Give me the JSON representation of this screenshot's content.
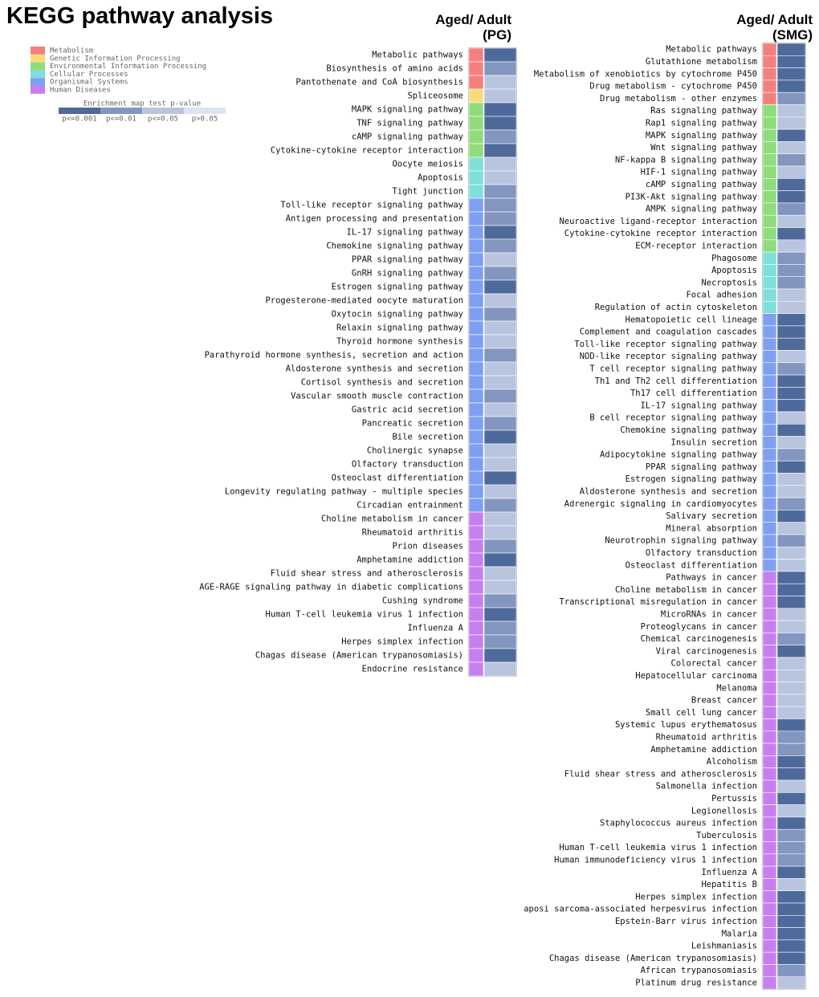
{
  "title": "KEGG pathway analysis",
  "legend": {
    "groups": [
      {
        "name": "Metabolism",
        "color": "#f57f7f"
      },
      {
        "name": "Genetic Information Processing",
        "color": "#fadb7a"
      },
      {
        "name": "Environmental Information Processing",
        "color": "#8fdc7b"
      },
      {
        "name": "Cellular Processes",
        "color": "#7fdfdb"
      },
      {
        "name": "Organismal Systems",
        "color": "#7f9ff2"
      },
      {
        "name": "Human Diseases",
        "color": "#c77ff0"
      }
    ],
    "scale_title": "Enrichment map test p-value",
    "levels": [
      {
        "label": "p<=0.001",
        "color": "#4e6a9a"
      },
      {
        "label": "p<=0.01",
        "color": "#8396bf"
      },
      {
        "label": "p<=0.05",
        "color": "#b9c4df"
      },
      {
        "label": "p>0.05",
        "color": "#dde3f1"
      }
    ]
  },
  "panels": [
    {
      "header": [
        "Aged/ Adult",
        "(PG)"
      ],
      "groups": [
        {
          "name": "Metabolism",
          "rows": [
            [
              "Metabolic pathways",
              "p<=0.001"
            ],
            [
              "Biosynthesis of amino acids",
              "p<=0.01"
            ],
            [
              "Pantothenate and CoA biosynthesis",
              "p<=0.05"
            ]
          ]
        },
        {
          "name": "Genetic Information Processing",
          "rows": [
            [
              "Spliceosome",
              "p<=0.05"
            ]
          ]
        },
        {
          "name": "Environmental Information Processing",
          "rows": [
            [
              "MAPK signaling pathway",
              "p<=0.001"
            ],
            [
              "TNF signaling pathway",
              "p<=0.001"
            ],
            [
              "cAMP signaling pathway",
              "p<=0.01"
            ],
            [
              "Cytokine-cytokine receptor interaction",
              "p<=0.001"
            ]
          ]
        },
        {
          "name": "Cellular Processes",
          "rows": [
            [
              "Oocyte meiosis",
              "p<=0.05"
            ],
            [
              "Apoptosis",
              "p<=0.05"
            ],
            [
              "Tight junction",
              "p<=0.01"
            ]
          ]
        },
        {
          "name": "Organismal Systems",
          "rows": [
            [
              "Toll-like receptor signaling pathway",
              "p<=0.01"
            ],
            [
              "Antigen processing and presentation",
              "p<=0.01"
            ],
            [
              "IL-17 signaling pathway",
              "p<=0.001"
            ],
            [
              "Chemokine signaling pathway",
              "p<=0.01"
            ],
            [
              "PPAR signaling pathway",
              "p<=0.05"
            ],
            [
              "GnRH signaling pathway",
              "p<=0.01"
            ],
            [
              "Estrogen signaling pathway",
              "p<=0.001"
            ],
            [
              "Progesterone-mediated oocyte maturation",
              "p<=0.05"
            ],
            [
              "Oxytocin signaling pathway",
              "p<=0.01"
            ],
            [
              "Relaxin signaling pathway",
              "p<=0.05"
            ],
            [
              "Thyroid hormone synthesis",
              "p<=0.05"
            ],
            [
              "Parathyroid hormone synthesis, secretion and action",
              "p<=0.01"
            ],
            [
              "Aldosterone synthesis and secretion",
              "p<=0.05"
            ],
            [
              "Cortisol synthesis and secretion",
              "p<=0.05"
            ],
            [
              "Vascular smooth muscle contraction",
              "p<=0.01"
            ],
            [
              "Gastric acid secretion",
              "p<=0.05"
            ],
            [
              "Pancreatic secretion",
              "p<=0.01"
            ],
            [
              "Bile secretion",
              "p<=0.001"
            ],
            [
              "Cholinergic synapse",
              "p<=0.05"
            ],
            [
              "Olfactory transduction",
              "p<=0.05"
            ],
            [
              "Osteoclast differentiation",
              "p<=0.001"
            ],
            [
              "Longevity regulating pathway - multiple species",
              "p<=0.05"
            ],
            [
              "Circadian entrainment",
              "p<=0.01"
            ]
          ]
        },
        {
          "name": "Human Diseases",
          "rows": [
            [
              "Choline metabolism in cancer",
              "p<=0.05"
            ],
            [
              "Rheumatoid arthritis",
              "p<=0.05"
            ],
            [
              "Prion diseases",
              "p<=0.01"
            ],
            [
              "Amphetamine addiction",
              "p<=0.001"
            ],
            [
              "Fluid shear stress and atherosclerosis",
              "p<=0.05"
            ],
            [
              "AGE-RAGE signaling pathway in diabetic complications",
              "p<=0.05"
            ],
            [
              "Cushing syndrome",
              "p<=0.01"
            ],
            [
              "Human T-cell leukemia virus 1 infection",
              "p<=0.001"
            ],
            [
              "Influenza A",
              "p<=0.01"
            ],
            [
              "Herpes simplex infection",
              "p<=0.01"
            ],
            [
              "Chagas disease (American trypanosomiasis)",
              "p<=0.001"
            ],
            [
              "Endocrine resistance",
              "p<=0.05"
            ]
          ]
        }
      ]
    },
    {
      "header": [
        "Aged/ Adult",
        "(SMG)"
      ],
      "groups": [
        {
          "name": "Metabolism",
          "rows": [
            [
              "Metabolic pathways",
              "p<=0.001"
            ],
            [
              "Glutathione metabolism",
              "p<=0.001"
            ],
            [
              "Metabolism of xenobiotics by cytochrome P450",
              "p<=0.001"
            ],
            [
              "Drug metabolism - cytochrome P450",
              "p<=0.001"
            ],
            [
              "Drug metabolism - other enzymes",
              "p<=0.01"
            ]
          ]
        },
        {
          "name": "Environmental Information Processing",
          "rows": [
            [
              "Ras signaling pathway",
              "p<=0.05"
            ],
            [
              "Rap1 signaling pathway",
              "p<=0.05"
            ],
            [
              "MAPK signaling pathway",
              "p<=0.001"
            ],
            [
              "Wnt signaling pathway",
              "p<=0.05"
            ],
            [
              "NF-kappa B signaling pathway",
              "p<=0.01"
            ],
            [
              "HIF-1 signaling pathway",
              "p<=0.05"
            ],
            [
              "cAMP signaling pathway",
              "p<=0.001"
            ],
            [
              "PI3K-Akt signaling pathway",
              "p<=0.001"
            ],
            [
              "AMPK signaling pathway",
              "p<=0.01"
            ],
            [
              "Neuroactive ligand-receptor interaction",
              "p<=0.05"
            ],
            [
              "Cytokine-cytokine receptor interaction",
              "p<=0.001"
            ],
            [
              "ECM-receptor interaction",
              "p<=0.05"
            ]
          ]
        },
        {
          "name": "Cellular Processes",
          "rows": [
            [
              "Phagosome",
              "p<=0.01"
            ],
            [
              "Apoptosis",
              "p<=0.01"
            ],
            [
              "Necroptosis",
              "p<=0.01"
            ],
            [
              "Focal adhesion",
              "p<=0.05"
            ],
            [
              "Regulation of actin cytoskeleton",
              "p<=0.05"
            ]
          ]
        },
        {
          "name": "Organismal Systems",
          "rows": [
            [
              "Hematopoietic cell lineage",
              "p<=0.001"
            ],
            [
              "Complement and coagulation cascades",
              "p<=0.001"
            ],
            [
              "Toll-like receptor signaling pathway",
              "p<=0.001"
            ],
            [
              "NOD-like receptor signaling pathway",
              "p<=0.05"
            ],
            [
              "T cell receptor signaling pathway",
              "p<=0.01"
            ],
            [
              "Th1 and Th2 cell differentiation",
              "p<=0.001"
            ],
            [
              "Th17 cell differentiation",
              "p<=0.001"
            ],
            [
              "IL-17 signaling pathway",
              "p<=0.001"
            ],
            [
              "B cell receptor signaling pathway",
              "p<=0.05"
            ],
            [
              "Chemokine signaling pathway",
              "p<=0.001"
            ],
            [
              "Insulin secretion",
              "p<=0.05"
            ],
            [
              "Adipocytokine signaling pathway",
              "p<=0.01"
            ],
            [
              "PPAR signaling pathway",
              "p<=0.001"
            ],
            [
              "Estrogen signaling pathway",
              "p<=0.05"
            ],
            [
              "Aldosterone synthesis and secretion",
              "p<=0.05"
            ],
            [
              "Adrenergic signaling in cardiomyocytes",
              "p<=0.01"
            ],
            [
              "Salivary secretion",
              "p<=0.001"
            ],
            [
              "Mineral absorption",
              "p<=0.05"
            ],
            [
              "Neurotrophin signaling pathway",
              "p<=0.01"
            ],
            [
              "Olfactory transduction",
              "p<=0.05"
            ],
            [
              "Osteoclast differentiation",
              "p<=0.05"
            ]
          ]
        },
        {
          "name": "Human Diseases",
          "rows": [
            [
              "Pathways in cancer",
              "p<=0.001"
            ],
            [
              "Choline metabolism in cancer",
              "p<=0.001"
            ],
            [
              "Transcriptional misregulation in cancer",
              "p<=0.001"
            ],
            [
              "MicroRNAs in cancer",
              "p<=0.05"
            ],
            [
              "Proteoglycans in cancer",
              "p<=0.05"
            ],
            [
              "Chemical carcinogenesis",
              "p<=0.01"
            ],
            [
              "Viral carcinogenesis",
              "p<=0.001"
            ],
            [
              "Colorectal cancer",
              "p<=0.05"
            ],
            [
              "Hepatocellular carcinoma",
              "p<=0.05"
            ],
            [
              "Melanoma",
              "p<=0.05"
            ],
            [
              "Breast cancer",
              "p<=0.05"
            ],
            [
              "Small cell lung cancer",
              "p<=0.05"
            ],
            [
              "Systemic lupus erythematosus",
              "p<=0.001"
            ],
            [
              "Rheumatoid arthritis",
              "p<=0.01"
            ],
            [
              "Amphetamine addiction",
              "p<=0.01"
            ],
            [
              "Alcoholism",
              "p<=0.001"
            ],
            [
              "Fluid shear stress and atherosclerosis",
              "p<=0.001"
            ],
            [
              "Salmonella infection",
              "p<=0.05"
            ],
            [
              "Pertussis",
              "p<=0.001"
            ],
            [
              "Legionellosis",
              "p<=0.05"
            ],
            [
              "Staphylococcus aureus infection",
              "p<=0.001"
            ],
            [
              "Tuberculosis",
              "p<=0.01"
            ],
            [
              "Human T-cell leukemia virus 1 infection",
              "p<=0.01"
            ],
            [
              "Human immunodeficiency virus 1 infection",
              "p<=0.01"
            ],
            [
              "Influenza A",
              "p<=0.001"
            ],
            [
              "Hepatitis B",
              "p<=0.05"
            ],
            [
              "Herpes simplex infection",
              "p<=0.001"
            ],
            [
              "aposi sarcoma-associated herpesvirus infection",
              "p<=0.001"
            ],
            [
              "Epstein-Barr virus infection",
              "p<=0.001"
            ],
            [
              "Malaria",
              "p<=0.001"
            ],
            [
              "Leishmaniasis",
              "p<=0.001"
            ],
            [
              "Chagas disease (American trypanosomiasis)",
              "p<=0.001"
            ],
            [
              "African trypanosomiasis",
              "p<=0.01"
            ],
            [
              "Platinum drug resistance",
              "p<=0.05"
            ]
          ]
        }
      ]
    }
  ]
}
